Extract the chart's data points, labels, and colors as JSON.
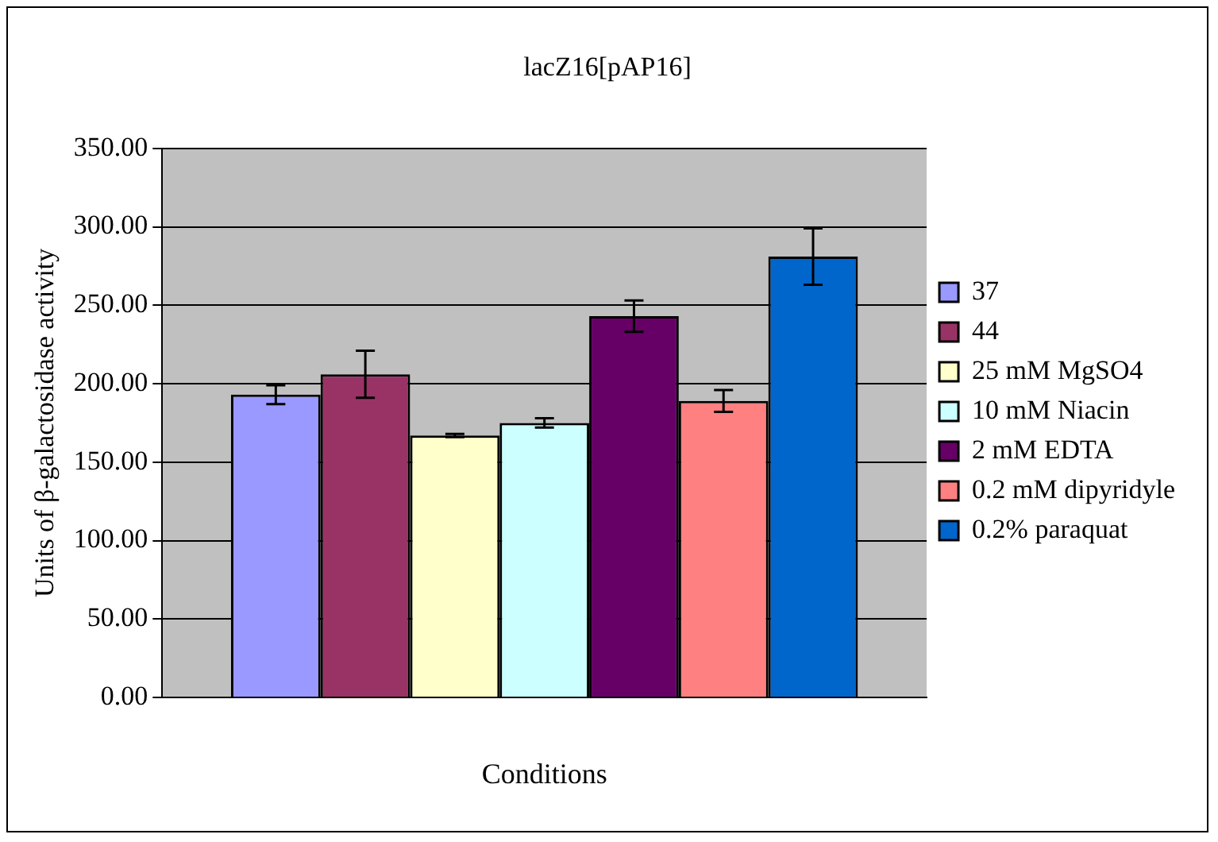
{
  "chart_data": {
    "type": "bar",
    "title": "lacZ16[pAP16]",
    "xlabel": "Conditions",
    "ylabel": "Units of β-galactosidase activity",
    "categories": [
      null
    ],
    "series": [
      {
        "name": "37",
        "color": "#9999ff",
        "values": [
          193
        ],
        "errors": [
          6
        ]
      },
      {
        "name": "44",
        "color": "#993366",
        "values": [
          206
        ],
        "errors": [
          15
        ]
      },
      {
        "name": "25 mM MgSO4",
        "color": "#ffffcc",
        "values": [
          167
        ],
        "errors": [
          1
        ]
      },
      {
        "name": "10 mM Niacin",
        "color": "#ccffff",
        "values": [
          175
        ],
        "errors": [
          3
        ]
      },
      {
        "name": "2 mM EDTA",
        "color": "#660066",
        "values": [
          243
        ],
        "errors": [
          10
        ]
      },
      {
        "name": "0.2 mM dipyridyle",
        "color": "#ff8080",
        "values": [
          189
        ],
        "errors": [
          7
        ]
      },
      {
        "name": "0.2% paraquat",
        "color": "#0066cc",
        "values": [
          281
        ],
        "errors": [
          18
        ]
      }
    ],
    "ylim": [
      0,
      350
    ],
    "yticks": [
      {
        "value": 0,
        "label": "0.00"
      },
      {
        "value": 50,
        "label": "50.00"
      },
      {
        "value": 100,
        "label": "100.00"
      },
      {
        "value": 150,
        "label": "150.00"
      },
      {
        "value": 200,
        "label": "200.00"
      },
      {
        "value": 250,
        "label": "250.00"
      },
      {
        "value": 300,
        "label": "300.00"
      },
      {
        "value": 350,
        "label": "350.00"
      }
    ],
    "grid": "y",
    "legend": "right"
  }
}
